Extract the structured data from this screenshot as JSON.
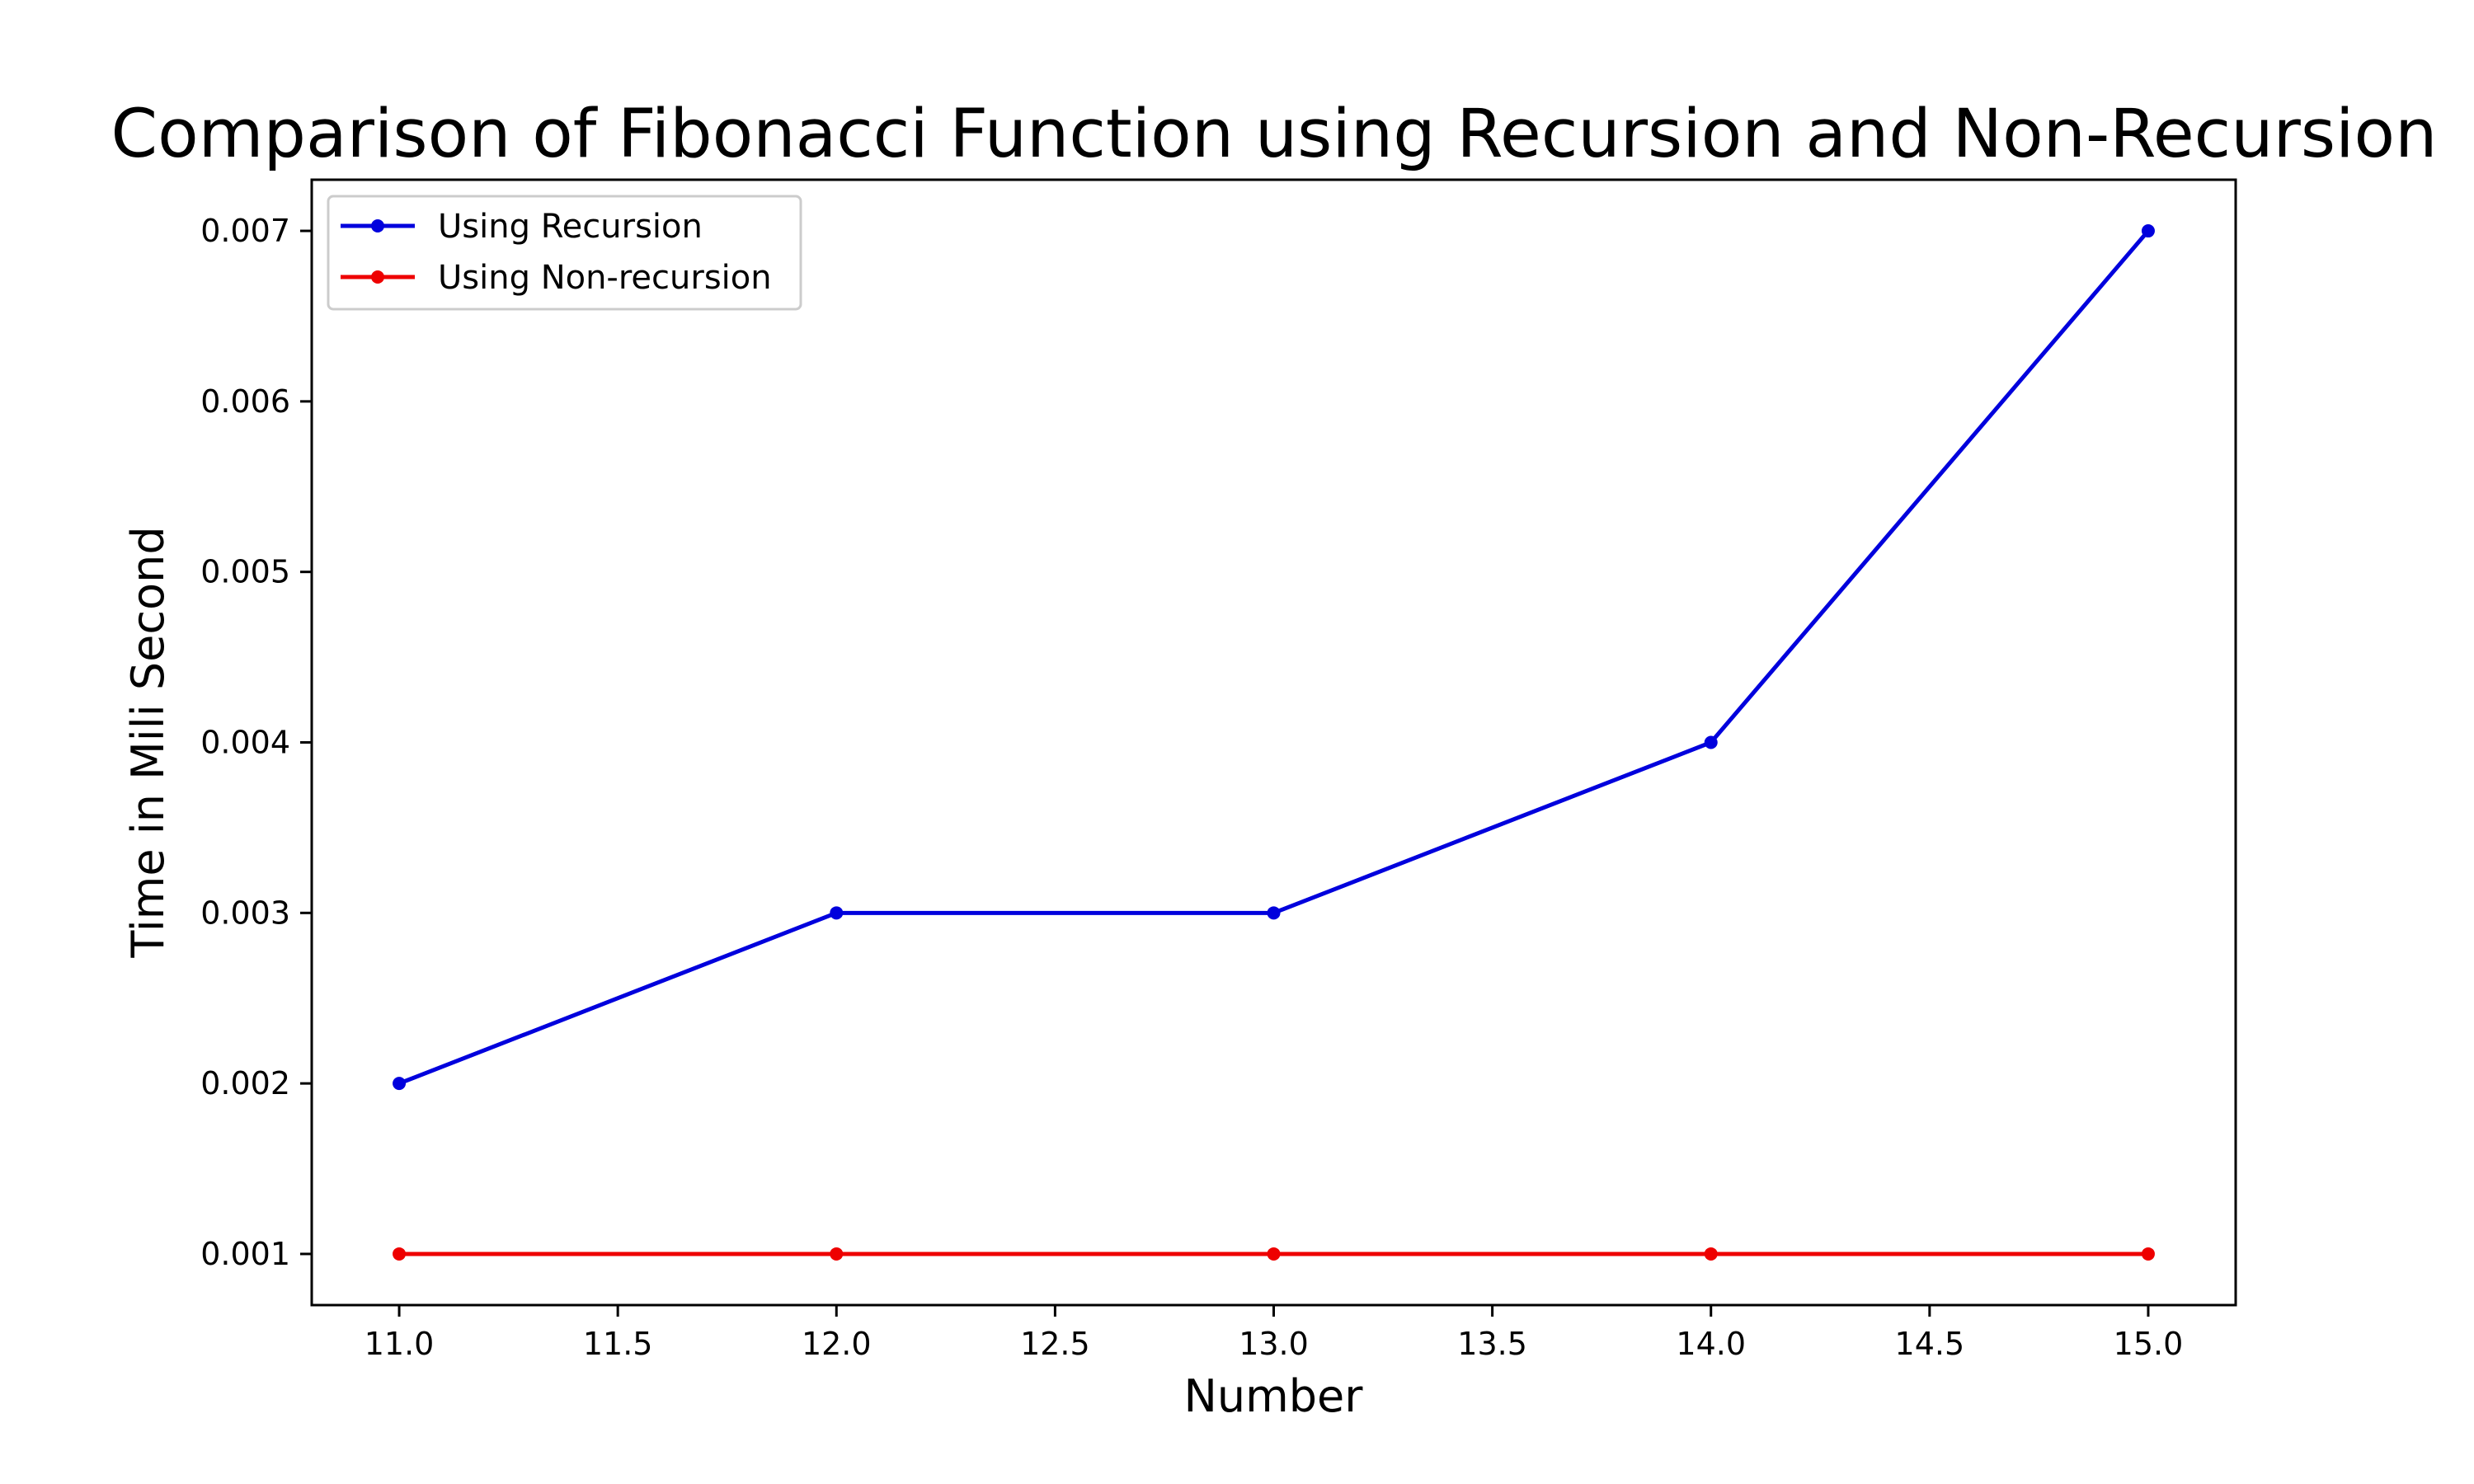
{
  "chart_data": {
    "type": "line",
    "title": "Comparison of Fibonacci Function using Recursion and Non-Recursion",
    "xlabel": "Number",
    "ylabel": "Time in Mili Second",
    "x": [
      11.0,
      12.0,
      13.0,
      14.0,
      15.0
    ],
    "xlim": [
      10.8,
      15.2
    ],
    "ylim": [
      0.0007,
      0.0073
    ],
    "xticks": [
      "11.0",
      "11.5",
      "12.0",
      "12.5",
      "13.0",
      "13.5",
      "14.0",
      "14.5",
      "15.0"
    ],
    "yticks": [
      "0.001",
      "0.002",
      "0.003",
      "0.004",
      "0.005",
      "0.006",
      "0.007"
    ],
    "grid": false,
    "legend_position": "top-left",
    "series": [
      {
        "name": "Using Recursion",
        "color": "#0000dd",
        "values": [
          0.002,
          0.003,
          0.003,
          0.004,
          0.007
        ]
      },
      {
        "name": "Using Non-recursion",
        "color": "#ee0000",
        "values": [
          0.001,
          0.001,
          0.001,
          0.001,
          0.001
        ]
      }
    ]
  }
}
